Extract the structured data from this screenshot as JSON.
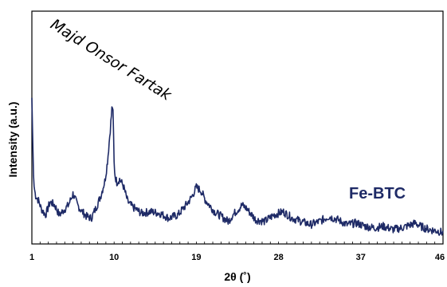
{
  "chart_data": {
    "type": "line",
    "title": "",
    "xlabel": "2θ (˚)",
    "ylabel": "Intensity (a.u.)",
    "xlim": [
      1,
      46
    ],
    "ylim": [
      0,
      100
    ],
    "x_ticks": [
      "1",
      "10",
      "19",
      "28",
      "37",
      "46"
    ],
    "y_ticks": [],
    "grid": false,
    "legend": "none",
    "annotation": "Majd Onsor Fartak",
    "series": [
      {
        "name": "Fe-BTC",
        "color": "#1e2a66",
        "x": [
          1,
          1.1,
          1.2,
          1.4,
          1.6,
          1.8,
          2.0,
          2.5,
          3.0,
          3.5,
          4.0,
          4.5,
          5.0,
          5.5,
          6.0,
          6.5,
          7.0,
          7.5,
          8.0,
          8.5,
          9.0,
          9.3,
          9.6,
          9.8,
          9.9,
          10.0,
          10.1,
          10.3,
          10.6,
          11.0,
          11.5,
          12.0,
          13.0,
          14.0,
          15.0,
          16.0,
          17.0,
          18.0,
          18.5,
          19.0,
          19.5,
          20.0,
          21.0,
          22.0,
          22.5,
          23.0,
          24.0,
          24.5,
          25.5,
          26.5,
          27.5,
          28.5,
          29.5,
          30.5,
          31.5,
          32.5,
          33.5,
          34.5,
          35.5,
          36.5,
          37.5,
          38.5,
          39.5,
          40.5,
          41.5,
          42.5,
          43.0,
          43.5,
          44.5,
          45.5,
          46.0
        ],
        "y": [
          83,
          55,
          30,
          23,
          21,
          19,
          15,
          11,
          19,
          17,
          11,
          14,
          17,
          24,
          17,
          13,
          10,
          9,
          15,
          22,
          32,
          45,
          65,
          79,
          72,
          43,
          35,
          31,
          33,
          29,
          19,
          16,
          12,
          13,
          12,
          9,
          11,
          18,
          22,
          28,
          26,
          20,
          13,
          9,
          7,
          11,
          17,
          15,
          8,
          7,
          11,
          13,
          9,
          7,
          5,
          7,
          10,
          8,
          5,
          6,
          4,
          3,
          4,
          2,
          3,
          5,
          6,
          4,
          2,
          1,
          0
        ]
      }
    ]
  }
}
